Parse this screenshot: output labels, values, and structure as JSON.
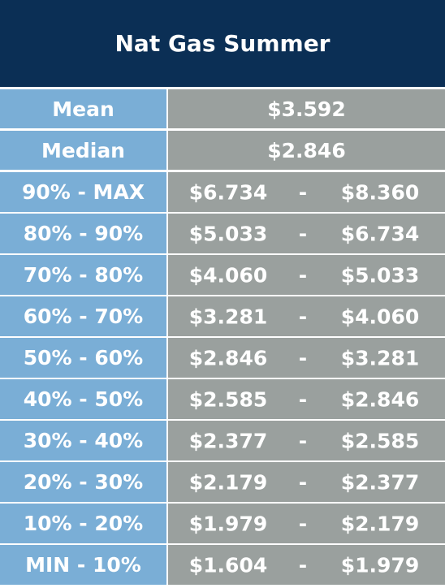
{
  "header": {
    "title": "Nat Gas Summer"
  },
  "summary": [
    [
      "Mean",
      "$3.592"
    ],
    [
      "Median",
      "$2.846"
    ]
  ],
  "ranges": [
    [
      "90% - MAX",
      "$6.734",
      "-",
      "$8.360"
    ],
    [
      "80% - 90%",
      "$5.033",
      "-",
      "$6.734"
    ],
    [
      "70% - 80%",
      "$4.060",
      "-",
      "$5.033"
    ],
    [
      "60% - 70%",
      "$3.281",
      "-",
      "$4.060"
    ],
    [
      "50% - 60%",
      "$2.846",
      "-",
      "$3.281"
    ],
    [
      "40% - 50%",
      "$2.585",
      "-",
      "$2.846"
    ],
    [
      "30% - 40%",
      "$2.377",
      "-",
      "$2.585"
    ],
    [
      "20% - 30%",
      "$2.179",
      "-",
      "$2.377"
    ],
    [
      "10% - 20%",
      "$1.979",
      "-",
      "$2.179"
    ],
    [
      "MIN - 10%",
      "$1.604",
      "-",
      "$1.979"
    ]
  ]
}
